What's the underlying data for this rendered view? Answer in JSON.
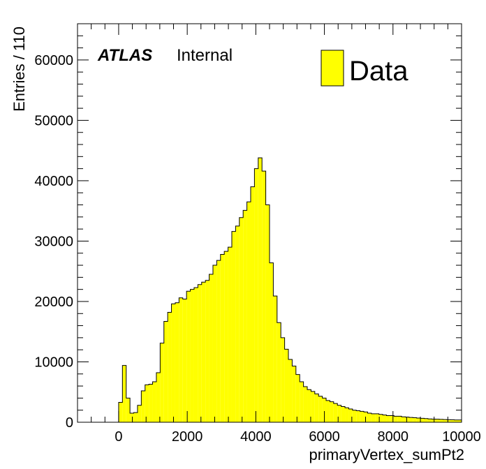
{
  "chart_data": {
    "type": "bar",
    "style": "histogram",
    "xlabel": "primaryVertex_sumPt2",
    "ylabel": "Entries / 110",
    "xlim": [
      -1200,
      10000
    ],
    "ylim": [
      0,
      66000
    ],
    "bin_width": 110,
    "x_ticks": [
      "0",
      "2000",
      "4000",
      "6000",
      "8000",
      "10000"
    ],
    "y_ticks": [
      "0",
      "10000",
      "20000",
      "30000",
      "40000",
      "50000",
      "60000"
    ],
    "legend": {
      "entries": [
        "Data"
      ],
      "placement": "top-right"
    },
    "annotation": {
      "experiment": "ATLAS",
      "status": "Internal"
    },
    "colors": {
      "fill": "#ffff00",
      "line": "#000000"
    },
    "series": [
      {
        "x_start": [
          0,
          110,
          220,
          330,
          440,
          550,
          660,
          770,
          880,
          990,
          1100,
          1210,
          1320,
          1430,
          1540,
          1650,
          1760,
          1870,
          1980,
          2090,
          2200,
          2310,
          2420,
          2530,
          2640,
          2750,
          2860,
          2970,
          3080,
          3190,
          3300,
          3410,
          3520,
          3630,
          3740,
          3850,
          3960,
          4070,
          4180,
          4290,
          4400,
          4510,
          4620,
          4730,
          4840,
          4950,
          5060,
          5170,
          5280,
          5390,
          5500,
          5610,
          5720,
          5830,
          5940,
          6050,
          6160,
          6270,
          6380,
          6490,
          6600,
          6710,
          6820,
          6930,
          7040,
          7150,
          7260,
          7370,
          7480,
          7590,
          7700,
          7810,
          7920,
          8030,
          8140,
          8250,
          8360,
          8470,
          8580,
          8690,
          8800,
          8910,
          9020,
          9130,
          9240,
          9350,
          9460,
          9570,
          9680,
          9790,
          9890
        ],
        "values": [
          3300,
          9400,
          4000,
          1500,
          1600,
          2800,
          5200,
          6200,
          6300,
          6700,
          8200,
          13100,
          16700,
          18200,
          19600,
          19800,
          20600,
          20400,
          21700,
          22000,
          22300,
          22800,
          23200,
          23500,
          24500,
          26000,
          26800,
          27800,
          28300,
          29000,
          31600,
          32500,
          33900,
          35100,
          36500,
          39000,
          42000,
          43800,
          41600,
          36000,
          26400,
          20900,
          16500,
          14000,
          12100,
          10400,
          9300,
          7900,
          6700,
          5900,
          5400,
          5100,
          4700,
          4300,
          4000,
          3600,
          3400,
          3100,
          2800,
          2600,
          2400,
          2200,
          2000,
          1900,
          1800,
          1700,
          1500,
          1400,
          1400,
          1300,
          1200,
          1100,
          1100,
          1000,
          1000,
          900,
          850,
          800,
          750,
          700,
          650,
          600,
          550,
          520,
          500,
          480,
          450,
          420,
          400,
          380,
          370
        ]
      }
    ]
  }
}
